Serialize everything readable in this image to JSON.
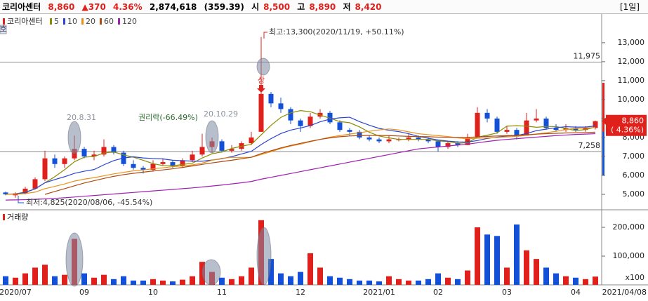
{
  "header": {
    "name": "코리아센터",
    "price": "8,860",
    "change": "▲370",
    "pct": "4.36%",
    "volume": "2,874,618",
    "amount": "(359.39)",
    "open_label": "시",
    "open": "8,500",
    "high_label": "고",
    "high": "8,890",
    "low_label": "저",
    "low": "8,420",
    "period": "[1일]",
    "side_tag": "호"
  },
  "chart_data": [
    {
      "type": "candlestick",
      "title": "코리아센터",
      "categories": [
        null,
        "2020/07",
        null,
        null,
        null,
        null,
        null,
        null,
        "09",
        null,
        null,
        null,
        null,
        null,
        null,
        "10",
        null,
        null,
        null,
        null,
        null,
        null,
        "11",
        null,
        null,
        null,
        null,
        null,
        null,
        null,
        "12",
        null,
        null,
        null,
        null,
        null,
        null,
        null,
        "2021/01",
        null,
        null,
        null,
        null,
        null,
        "02",
        null,
        null,
        null,
        null,
        null,
        null,
        "03",
        null,
        null,
        null,
        null,
        null,
        null,
        "04",
        null,
        "2021/04/08"
      ],
      "ohlc": [
        [
          5100,
          5150,
          4950,
          5000
        ],
        [
          4950,
          5100,
          4825,
          5050
        ],
        [
          5050,
          5400,
          5000,
          5300
        ],
        [
          5300,
          5900,
          5250,
          5800
        ],
        [
          5800,
          7300,
          5700,
          6900
        ],
        [
          6900,
          7100,
          6400,
          6600
        ],
        [
          6600,
          7000,
          6400,
          6900
        ],
        [
          6900,
          8100,
          6800,
          7400
        ],
        [
          7400,
          7500,
          6900,
          7000
        ],
        [
          7000,
          7300,
          6800,
          7100
        ],
        [
          7100,
          7900,
          7000,
          7500
        ],
        [
          7500,
          7600,
          7100,
          7200
        ],
        [
          7200,
          7300,
          6500,
          6600
        ],
        [
          6600,
          6800,
          6300,
          6400
        ],
        [
          6400,
          6500,
          6100,
          6300
        ],
        [
          6300,
          6800,
          6200,
          6600
        ],
        [
          6600,
          6900,
          6500,
          6700
        ],
        [
          6700,
          6800,
          6400,
          6500
        ],
        [
          6500,
          6900,
          6400,
          6800
        ],
        [
          6800,
          7300,
          6700,
          7100
        ],
        [
          7100,
          8200,
          7000,
          7500
        ],
        [
          7500,
          8000,
          7200,
          7800
        ],
        [
          7800,
          7900,
          7200,
          7300
        ],
        [
          7300,
          7600,
          7200,
          7400
        ],
        [
          7400,
          7800,
          7300,
          7700
        ],
        [
          7700,
          8300,
          7600,
          8000
        ],
        [
          8300,
          13300,
          8300,
          10300
        ],
        [
          10300,
          10400,
          9600,
          9800
        ],
        [
          9800,
          10100,
          9300,
          9500
        ],
        [
          9500,
          9600,
          8700,
          8900
        ],
        [
          8900,
          9000,
          8300,
          8600
        ],
        [
          8600,
          9300,
          8500,
          9100
        ],
        [
          9100,
          9500,
          9000,
          9300
        ],
        [
          9300,
          9400,
          8700,
          8800
        ],
        [
          8800,
          8900,
          8300,
          8400
        ],
        [
          8400,
          8500,
          8100,
          8300
        ],
        [
          8300,
          8400,
          7900,
          8000
        ],
        [
          8000,
          8100,
          7800,
          7900
        ],
        [
          7900,
          8000,
          7700,
          7800
        ],
        [
          7800,
          8100,
          7700,
          7900
        ],
        [
          7900,
          8000,
          7800,
          7900
        ],
        [
          7900,
          8200,
          7800,
          8000
        ],
        [
          8000,
          8100,
          7800,
          7900
        ],
        [
          7900,
          8000,
          7700,
          7800
        ],
        [
          7800,
          7850,
          7258,
          7500
        ],
        [
          7500,
          7800,
          7400,
          7700
        ],
        [
          7700,
          7800,
          7500,
          7600
        ],
        [
          7600,
          8200,
          7600,
          8000
        ],
        [
          8000,
          9600,
          8000,
          9300
        ],
        [
          9300,
          9500,
          8800,
          9000
        ],
        [
          9000,
          9100,
          8200,
          8300
        ],
        [
          8300,
          8600,
          8200,
          8400
        ],
        [
          8400,
          8500,
          7900,
          8100
        ],
        [
          8100,
          9300,
          8100,
          8900
        ],
        [
          8900,
          9500,
          8800,
          9000
        ],
        [
          9000,
          9100,
          8400,
          8500
        ],
        [
          8500,
          8700,
          8300,
          8400
        ],
        [
          8400,
          8700,
          8300,
          8500
        ],
        [
          8500,
          8600,
          8300,
          8400
        ],
        [
          8400,
          8600,
          8300,
          8490
        ],
        [
          8500,
          8890,
          8420,
          8860
        ]
      ],
      "up_color": "#e0201b",
      "down_color": "#1250d8",
      "series": [
        {
          "name": "5",
          "color": "#8c8c00",
          "values": [
            5000,
            5030,
            5120,
            5290,
            5610,
            5930,
            6300,
            6720,
            6960,
            7000,
            7180,
            7240,
            7080,
            6960,
            6800,
            6620,
            6520,
            6500,
            6580,
            6640,
            6920,
            7140,
            7240,
            7420,
            7540,
            7640,
            8140,
            8640,
            9060,
            9300,
            9420,
            9360,
            9180,
            9020,
            8840,
            8780,
            8560,
            8280,
            8080,
            7980,
            7900,
            7900,
            7900,
            7900,
            7820,
            7780,
            7700,
            7720,
            8020,
            8120,
            8240,
            8600,
            8620,
            8600,
            8540,
            8580,
            8580,
            8480,
            8360,
            8420,
            8550
          ]
        },
        {
          "name": "10",
          "color": "#2a45d0",
          "values": [
            5000,
            5020,
            5100,
            5290,
            5610,
            5780,
            5930,
            6110,
            6220,
            6310,
            6560,
            6780,
            6920,
            6980,
            6920,
            6890,
            6870,
            6800,
            6780,
            6750,
            6750,
            6810,
            6880,
            6990,
            7130,
            7270,
            7630,
            7940,
            8210,
            8390,
            8500,
            8630,
            8830,
            8970,
            9040,
            9070,
            8840,
            8650,
            8480,
            8380,
            8310,
            8200,
            8060,
            7960,
            7870,
            7810,
            7770,
            7760,
            7840,
            7950,
            8020,
            8080,
            8100,
            8210,
            8360,
            8440,
            8520,
            8570,
            8550,
            8550,
            8610
          ]
        },
        {
          "name": "20",
          "color": "#e8901a",
          "values": [
            5000,
            5010,
            5040,
            5120,
            5300,
            5420,
            5550,
            5700,
            5800,
            5880,
            5980,
            6080,
            6160,
            6240,
            6290,
            6350,
            6400,
            6460,
            6500,
            6550,
            6650,
            6800,
            6900,
            6950,
            6950,
            6950,
            7100,
            7250,
            7420,
            7550,
            7650,
            7780,
            7900,
            8020,
            8100,
            8180,
            8250,
            8330,
            8400,
            8450,
            8400,
            8300,
            8200,
            8150,
            8100,
            8050,
            7980,
            7940,
            7960,
            7980,
            8000,
            8030,
            8060,
            8120,
            8180,
            8250,
            8330,
            8420,
            8480,
            8500,
            8530
          ]
        },
        {
          "name": "60",
          "color": "#b04a10",
          "values": [
            null,
            null,
            null,
            null,
            5000,
            5150,
            5300,
            5450,
            5600,
            5720,
            5840,
            5950,
            6040,
            6110,
            6170,
            6230,
            6290,
            6350,
            6420,
            6500,
            6580,
            6660,
            6730,
            6800,
            6880,
            6960,
            7150,
            7300,
            7450,
            7580,
            7690,
            7800,
            7900,
            7980,
            8040,
            8080,
            8100,
            8110,
            8110,
            8100,
            8080,
            8060,
            8050,
            8040,
            8020,
            8010,
            8000,
            8000,
            8030,
            8060,
            8080,
            8100,
            8110,
            8140,
            8180,
            8200,
            8220,
            8240,
            8250,
            8260,
            8280
          ]
        },
        {
          "name": "120",
          "color": "#a020b0",
          "values": [
            4700,
            4710,
            4720,
            4740,
            4760,
            4790,
            4820,
            4860,
            4900,
            4940,
            4980,
            5020,
            5060,
            5100,
            5140,
            5180,
            5220,
            5260,
            5300,
            5340,
            5390,
            5440,
            5490,
            5550,
            5610,
            5680,
            5800,
            5900,
            6000,
            6100,
            6200,
            6300,
            6400,
            6500,
            6600,
            6700,
            6800,
            6900,
            7000,
            7100,
            7200,
            7300,
            7400,
            7450,
            7500,
            7550,
            7600,
            7650,
            7720,
            7790,
            7850,
            7900,
            7940,
            7980,
            8020,
            8060,
            8100,
            8130,
            8160,
            8180,
            8200
          ]
        }
      ],
      "ylim": [
        4260,
        14440
      ],
      "yticks": [
        {
          "value": 5000,
          "label": "5,000"
        },
        {
          "value": 6000,
          "label": "6,000"
        },
        {
          "value": 7000,
          "label": "7,000"
        },
        {
          "value": 8000,
          "label": "8,000"
        },
        {
          "value": 9000,
          "label": "9,000"
        },
        {
          "value": 10000,
          "label": "10,000"
        },
        {
          "value": 11000,
          "label": "11,000"
        },
        {
          "value": 12000,
          "label": "12,000"
        },
        {
          "value": 13000,
          "label": "13,000"
        }
      ],
      "reference_lines": [
        {
          "value": 11975,
          "label": "11,975"
        },
        {
          "value": 7258,
          "label": "7,258"
        }
      ],
      "last_price": {
        "value": 8860,
        "label": "8,860"
      },
      "last_change": "( 4.36%)",
      "annotations": {
        "high": "최고:13,300(2020/11/19, +50.11%)",
        "low": "최저:4,825(2020/08/06, -45.54%)",
        "rights": "권리락(-66.49%)",
        "date1": "20.8.31",
        "date2": "20.10.29",
        "limit_up": "상"
      }
    },
    {
      "type": "bar",
      "title": "거래량",
      "values": [
        30000,
        25000,
        40000,
        60000,
        70000,
        30000,
        35000,
        160000,
        40000,
        25000,
        35000,
        20000,
        30000,
        15000,
        15000,
        20000,
        15000,
        12000,
        18000,
        30000,
        80000,
        45000,
        25000,
        20000,
        30000,
        60000,
        225000,
        90000,
        40000,
        30000,
        45000,
        110000,
        60000,
        30000,
        25000,
        20000,
        15000,
        15000,
        12000,
        30000,
        20000,
        15000,
        15000,
        20000,
        40000,
        25000,
        20000,
        50000,
        200000,
        175000,
        170000,
        60000,
        210000,
        120000,
        90000,
        60000,
        40000,
        30000,
        25000,
        20000,
        28746
      ],
      "ylim": [
        0,
        253700
      ],
      "yticks": [
        {
          "value": 100000,
          "label": "100,000"
        },
        {
          "value": 200000,
          "label": "200,000"
        }
      ],
      "unit": "x100"
    }
  ]
}
